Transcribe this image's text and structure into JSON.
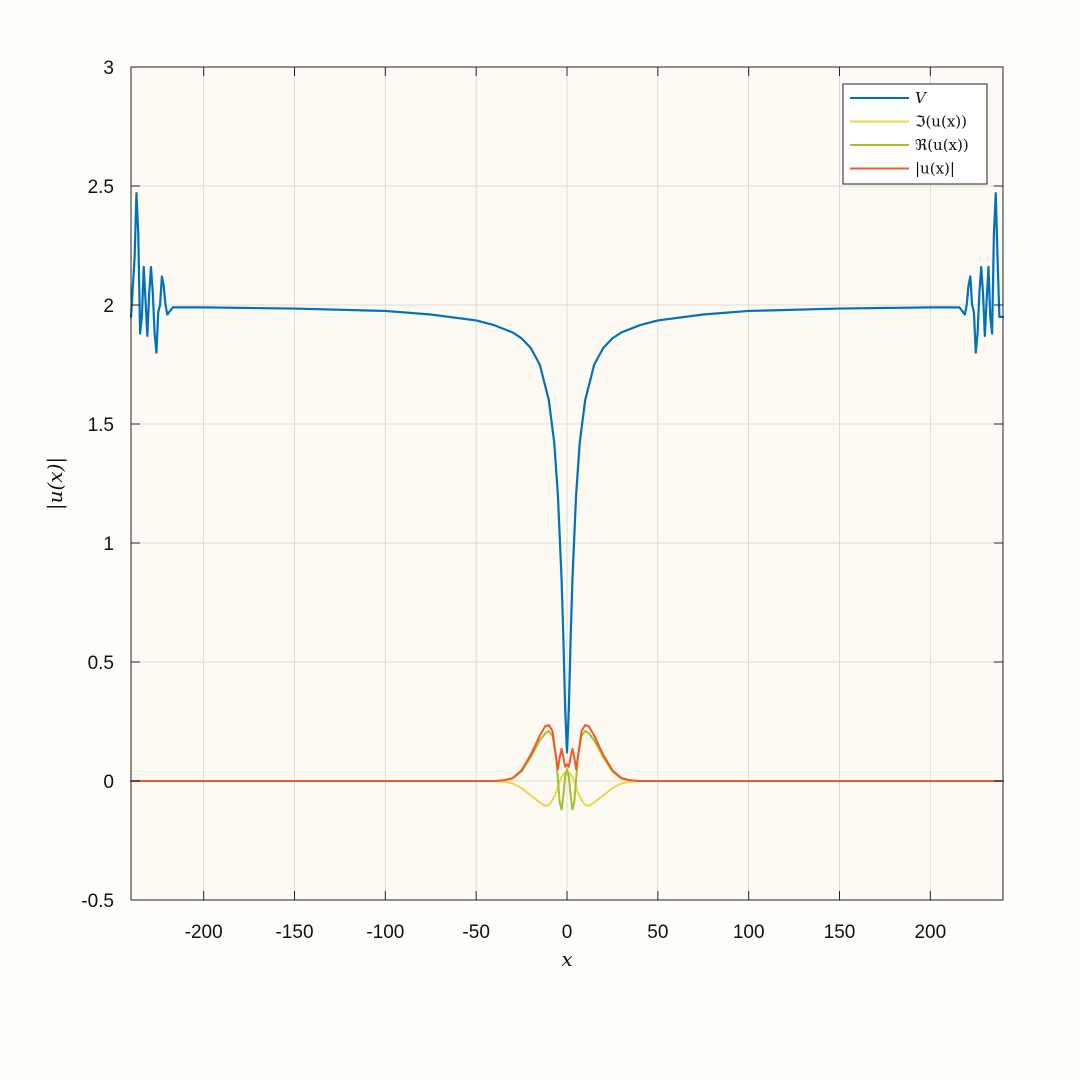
{
  "chart_data": {
    "type": "line",
    "title": "",
    "xlabel": "x",
    "ylabel": "|u(x)|",
    "xlim": [
      -240,
      240
    ],
    "ylim": [
      -0.5,
      3
    ],
    "grid": true,
    "legend_position": "top-right",
    "xticks": [
      -200,
      -150,
      -100,
      -50,
      0,
      50,
      100,
      150,
      200
    ],
    "yticks": [
      -0.5,
      0,
      0.5,
      1,
      1.5,
      2,
      2.5,
      3
    ],
    "xtick_labels": [
      "-200",
      "-150",
      "-100",
      "-50",
      "0",
      "50",
      "100",
      "150",
      "200"
    ],
    "ytick_labels": [
      "-0.5",
      "0",
      "0.5",
      "1",
      "1.5",
      "2",
      "2.5",
      "3"
    ],
    "series": [
      {
        "name": "V",
        "color": "#0072BD",
        "x": [
          -240,
          -238,
          -237,
          -236,
          -235,
          -234,
          -233,
          -232,
          -231,
          -230,
          -229,
          -228,
          -227,
          -226,
          -225,
          -224,
          -223,
          -222,
          -221,
          -220,
          -219,
          -218,
          -217,
          -216,
          -215,
          -214,
          -213,
          -212,
          -210,
          -200,
          -150,
          -100,
          -75,
          -50,
          -40,
          -30,
          -25,
          -20,
          -15,
          -10,
          -7,
          -5,
          -3,
          -2,
          -1,
          0,
          1,
          2,
          3,
          5,
          7,
          10,
          15,
          20,
          25,
          30,
          40,
          50,
          75,
          100,
          150,
          200,
          210,
          212,
          213,
          214,
          215,
          216,
          217,
          218,
          219,
          220,
          221,
          222,
          223,
          224,
          225,
          226,
          227,
          228,
          229,
          230,
          231,
          232,
          233,
          234,
          235,
          236,
          237,
          238,
          240
        ],
        "y": [
          1.95,
          2.2,
          2.47,
          2.3,
          1.88,
          1.95,
          2.16,
          2.02,
          1.87,
          2.05,
          2.16,
          2.05,
          1.88,
          1.8,
          1.97,
          2.0,
          2.12,
          2.08,
          2.0,
          1.96,
          1.97,
          1.98,
          1.99,
          1.99,
          1.99,
          1.99,
          1.99,
          1.99,
          1.99,
          1.99,
          1.985,
          1.975,
          1.96,
          1.935,
          1.915,
          1.885,
          1.86,
          1.82,
          1.75,
          1.6,
          1.42,
          1.2,
          0.85,
          0.6,
          0.3,
          0.12,
          0.3,
          0.6,
          0.85,
          1.2,
          1.42,
          1.6,
          1.75,
          1.82,
          1.86,
          1.885,
          1.915,
          1.935,
          1.96,
          1.975,
          1.985,
          1.99,
          1.99,
          1.99,
          1.99,
          1.99,
          1.99,
          1.99,
          1.98,
          1.97,
          1.96,
          2.0,
          2.08,
          2.12,
          2.0,
          1.97,
          1.8,
          1.88,
          2.05,
          2.16,
          2.05,
          1.87,
          2.02,
          2.16,
          1.95,
          1.88,
          2.3,
          2.47,
          2.2,
          1.95,
          1.95
        ]
      },
      {
        "name": "ℑ(u(x))",
        "color": "#EDD54A",
        "x": [
          -240,
          -40,
          -35,
          -30,
          -25,
          -20,
          -15,
          -12,
          -10,
          -8,
          -6,
          -4,
          -2,
          0,
          2,
          4,
          6,
          8,
          10,
          12,
          15,
          20,
          25,
          30,
          35,
          40,
          240
        ],
        "y": [
          0,
          0,
          -0.003,
          -0.01,
          -0.03,
          -0.06,
          -0.09,
          -0.105,
          -0.1,
          -0.08,
          -0.05,
          0.0,
          0.03,
          0.04,
          0.03,
          0.0,
          -0.05,
          -0.08,
          -0.1,
          -0.105,
          -0.09,
          -0.06,
          -0.03,
          -0.01,
          -0.003,
          0,
          0
        ]
      },
      {
        "name": "ℜ(u(x))",
        "color": "#A2C12A",
        "x": [
          -240,
          -40,
          -35,
          -30,
          -25,
          -20,
          -15,
          -12,
          -10,
          -8,
          -6,
          -4,
          -3,
          -2,
          -1,
          0,
          1,
          2,
          3,
          4,
          6,
          8,
          10,
          12,
          15,
          20,
          25,
          30,
          35,
          40,
          240
        ],
        "y": [
          0,
          0,
          0.002,
          0.01,
          0.04,
          0.1,
          0.17,
          0.2,
          0.21,
          0.19,
          0.1,
          -0.09,
          -0.12,
          -0.06,
          0.02,
          0.05,
          0.02,
          -0.06,
          -0.12,
          -0.09,
          0.1,
          0.19,
          0.21,
          0.2,
          0.17,
          0.1,
          0.04,
          0.01,
          0.002,
          0,
          0
        ]
      },
      {
        "name": "|u(x)|",
        "color": "#F05A28",
        "x": [
          -240,
          -40,
          -35,
          -30,
          -25,
          -20,
          -15,
          -12,
          -10,
          -8,
          -6,
          -5,
          -4,
          -3,
          -2,
          -1,
          0,
          1,
          2,
          3,
          4,
          5,
          6,
          8,
          10,
          12,
          15,
          20,
          25,
          30,
          35,
          40,
          240
        ],
        "y": [
          0,
          0,
          0.003,
          0.012,
          0.045,
          0.11,
          0.19,
          0.23,
          0.235,
          0.21,
          0.1,
          0.05,
          0.1,
          0.135,
          0.1,
          0.06,
          0.07,
          0.06,
          0.1,
          0.135,
          0.1,
          0.05,
          0.1,
          0.21,
          0.235,
          0.23,
          0.19,
          0.11,
          0.045,
          0.012,
          0.003,
          0,
          0
        ]
      }
    ]
  }
}
